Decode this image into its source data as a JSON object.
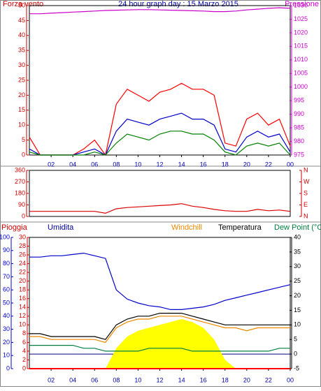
{
  "chart_data": [
    {
      "type": "line",
      "title": "24 hour graph day : 15 Marzo 2015",
      "y_label": "Forza vento",
      "y2_label": "Pressione",
      "x": [
        0,
        1,
        2,
        3,
        4,
        5,
        6,
        7,
        8,
        9,
        10,
        11,
        12,
        13,
        14,
        15,
        16,
        17,
        18,
        19,
        20,
        21,
        22,
        23,
        24
      ],
      "xlim": [
        0,
        24
      ],
      "xticks": [
        {
          "value": 2,
          "label": "02"
        },
        {
          "value": 4,
          "label": "04"
        },
        {
          "value": 6,
          "label": "06"
        },
        {
          "value": 8,
          "label": "08"
        },
        10,
        12,
        14,
        16,
        18,
        20,
        22,
        {
          "value": 24,
          "label": "00"
        }
      ],
      "ylim": [
        0,
        50
      ],
      "yticks": [
        0,
        5,
        10,
        15,
        20,
        25,
        30,
        35,
        40,
        45,
        50
      ],
      "ytick_color": "#cc0000",
      "y2lim": [
        975,
        1030
      ],
      "y2ticks": [
        975,
        980,
        985,
        990,
        995,
        1000,
        1005,
        1010,
        1015,
        1020,
        1025,
        1030
      ],
      "y2tick_color": "#cc00cc",
      "series": [
        {
          "color": "#ff0000",
          "values": [
            6,
            0,
            0,
            0,
            0,
            2,
            5,
            0,
            17,
            22,
            20,
            18,
            21,
            22,
            24,
            22,
            22,
            20,
            4,
            3,
            12,
            14,
            10,
            12,
            3
          ]
        },
        {
          "color": "#0000cc",
          "values": [
            2,
            0,
            0,
            0,
            0,
            1,
            2,
            0,
            8,
            12,
            11,
            10,
            12,
            13,
            14,
            12,
            12,
            10,
            2,
            1,
            6,
            8,
            6,
            7,
            1
          ]
        },
        {
          "color": "#008000",
          "values": [
            1,
            0,
            0,
            0,
            0,
            0,
            1,
            0,
            4,
            7,
            6,
            5,
            7,
            8,
            8,
            7,
            7,
            5,
            1,
            0,
            3,
            4,
            3,
            4,
            0
          ]
        },
        {
          "color": "#cc00cc",
          "axis": "y2",
          "values": [
            1027,
            1027,
            1027.2,
            1027.4,
            1027.6,
            1027.8,
            1028,
            1028.2,
            1028.3,
            1028.4,
            1028.5,
            1028.5,
            1028.4,
            1028.3,
            1028.2,
            1028.1,
            1028,
            1027.8,
            1027.8,
            1028,
            1028.4,
            1028.7,
            1029,
            1029.2,
            1029
          ]
        }
      ]
    },
    {
      "type": "line",
      "x": [
        0,
        1,
        2,
        3,
        4,
        5,
        6,
        7,
        8,
        9,
        10,
        11,
        12,
        13,
        14,
        15,
        16,
        17,
        18,
        19,
        20,
        21,
        22,
        23,
        24
      ],
      "xlim": [
        0,
        24
      ],
      "ylim": [
        0,
        360
      ],
      "yticks": [
        0,
        90,
        180,
        270,
        360
      ],
      "ytick_color": "#cc0000",
      "y2lim": [
        0,
        360
      ],
      "y2ticks": [
        {
          "value": 360,
          "label": "N"
        },
        {
          "value": 270,
          "label": "W"
        },
        {
          "value": 180,
          "label": "S"
        },
        {
          "value": 90,
          "label": "E"
        },
        {
          "value": 0,
          "label": "N"
        }
      ],
      "y2tick_color": "#cc0000",
      "series": [
        {
          "color": "#dd0000",
          "values": [
            40,
            40,
            40,
            40,
            40,
            40,
            40,
            25,
            60,
            70,
            75,
            80,
            85,
            90,
            100,
            80,
            70,
            55,
            45,
            40,
            40,
            55,
            45,
            50,
            40
          ]
        }
      ]
    },
    {
      "type": "line",
      "x": [
        0,
        1,
        2,
        3,
        4,
        5,
        6,
        7,
        8,
        9,
        10,
        11,
        12,
        13,
        14,
        15,
        16,
        17,
        18,
        19,
        20,
        21,
        22,
        23,
        24
      ],
      "xlim": [
        0,
        24
      ],
      "xticks": [
        {
          "value": 2,
          "label": "02"
        },
        {
          "value": 4,
          "label": "04"
        },
        {
          "value": 6,
          "label": "06"
        },
        {
          "value": 8,
          "label": "08"
        },
        10,
        12,
        14,
        16,
        18,
        20,
        22,
        {
          "value": 24,
          "label": "00"
        }
      ],
      "ylim": [
        0,
        100
      ],
      "yticks": [
        0,
        10,
        20,
        30,
        40,
        50,
        60,
        70,
        80,
        90,
        100
      ],
      "ytick_color": "#0000cc",
      "y3lim": [
        0,
        30
      ],
      "y3ticks": [
        0,
        2,
        4,
        6,
        8,
        10,
        12,
        14,
        16,
        18,
        20,
        22,
        24,
        26,
        28,
        30
      ],
      "y3tick_color": "#cc0000",
      "y2lim": [
        -5,
        40
      ],
      "y2ticks": [
        -5,
        0,
        5,
        10,
        15,
        20,
        25,
        30,
        35,
        40
      ],
      "y2tick_color": "#000000",
      "series": [
        {
          "type": "area",
          "color": "#ffff00",
          "axis": "y2",
          "values": [
            -5,
            -5,
            -5,
            -5,
            -5,
            -5,
            -5,
            -5,
            2,
            6,
            8,
            9,
            10,
            11,
            12,
            11,
            9,
            5,
            -2,
            -5,
            -5,
            -5,
            -5,
            -5,
            -5
          ]
        },
        {
          "name": "Pioggia",
          "color": "#ff0000",
          "axis": "y3",
          "values": [
            0,
            0,
            0,
            0,
            0,
            0,
            0,
            0,
            0,
            0,
            0,
            0,
            0,
            0,
            0,
            0,
            0,
            0,
            0,
            0,
            0,
            0,
            0,
            0,
            0
          ]
        },
        {
          "name": "Umidita",
          "color": "#0000cc",
          "values": [
            85,
            85,
            86,
            86,
            87,
            88,
            86,
            84,
            60,
            53,
            50,
            48,
            47,
            45,
            45,
            46,
            47,
            49,
            52,
            54,
            56,
            58,
            60,
            62,
            64
          ]
        },
        {
          "name": "Windchill",
          "color": "#ee8800",
          "axis": "y2",
          "values": [
            6,
            6,
            5,
            5,
            5,
            5,
            5,
            4,
            9,
            11,
            12,
            12,
            13,
            13,
            13,
            12,
            11,
            10,
            9,
            9,
            8,
            9,
            9,
            9,
            9
          ]
        },
        {
          "name": "Temperatura",
          "color": "#000000",
          "axis": "y2",
          "values": [
            7,
            7,
            6,
            6,
            6,
            6,
            6,
            5,
            10,
            12,
            13,
            13,
            14,
            14,
            14,
            13,
            12,
            11,
            10,
            10,
            10,
            10,
            10,
            10,
            10
          ]
        },
        {
          "name": "Dew Point (°C",
          "color": "#008040",
          "axis": "y2",
          "values": [
            3,
            3,
            3,
            3,
            3,
            2,
            2,
            1,
            1,
            1,
            1,
            2,
            2,
            2,
            2,
            1,
            1,
            1,
            1,
            1,
            1,
            1,
            1,
            2,
            2
          ]
        }
      ]
    }
  ]
}
